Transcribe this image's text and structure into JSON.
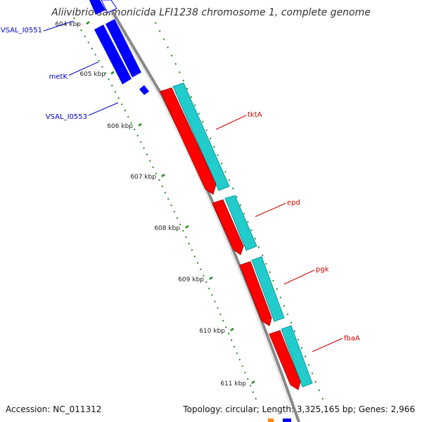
{
  "title": "Aliivibrio salmonicida LFI1238 chromosome 1, complete genome",
  "footer": {
    "accession": "Accession: NC_011312",
    "summary": "Topology: circular; Length: 3,325,165 bp; Genes: 2,966"
  },
  "ticks": [
    "604 kbp",
    "605 kbp",
    "606 kbp",
    "607 kbp",
    "608 kbp",
    "609 kbp",
    "610 kbp",
    "611 kbp"
  ],
  "genes": {
    "reverse": [
      {
        "label": "VSAL_I0551",
        "color": "#0000cc"
      },
      {
        "label": "metK",
        "color": "#0000cc"
      },
      {
        "label": "VSAL_I0553",
        "color": "#0000cc"
      }
    ],
    "forward": [
      {
        "label": "tktA",
        "color": "#cc0000"
      },
      {
        "label": "epd",
        "color": "#cc0000"
      },
      {
        "label": "pgk",
        "color": "#cc0000"
      },
      {
        "label": "fbaA",
        "color": "#cc0000"
      }
    ]
  },
  "colors": {
    "backbone": "#888888",
    "forward_cds": "#ff0000",
    "reverse_cds": "#0000ff",
    "gene_band": "#22cccc",
    "tick": "#228822"
  }
}
